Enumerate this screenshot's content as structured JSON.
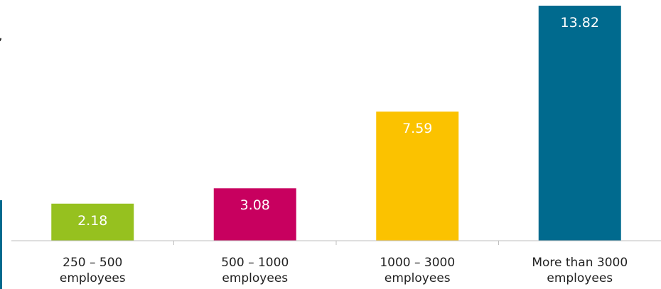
{
  "fragment": {
    "char": ","
  },
  "chart_data": {
    "type": "bar",
    "title": "",
    "xlabel": "",
    "ylabel": "",
    "ylim": [
      0,
      13.82
    ],
    "grid": false,
    "legend": "none",
    "categories": [
      "250 – 500 employees",
      "500 – 1000 employees",
      "1000 – 3000 employees",
      "More than 3000 employees"
    ],
    "category_lines": [
      [
        "250 – 500",
        "employees"
      ],
      [
        "500 – 1000",
        "employees"
      ],
      [
        "1000 – 3000",
        "employees"
      ],
      [
        "More than 3000",
        "employees"
      ]
    ],
    "values": [
      2.18,
      3.08,
      7.59,
      13.82
    ],
    "value_labels": [
      "2.18",
      "3.08",
      "7.59",
      "13.82"
    ],
    "colors": [
      "#96c11f",
      "#c8005f",
      "#fbc200",
      "#006a8e"
    ]
  }
}
